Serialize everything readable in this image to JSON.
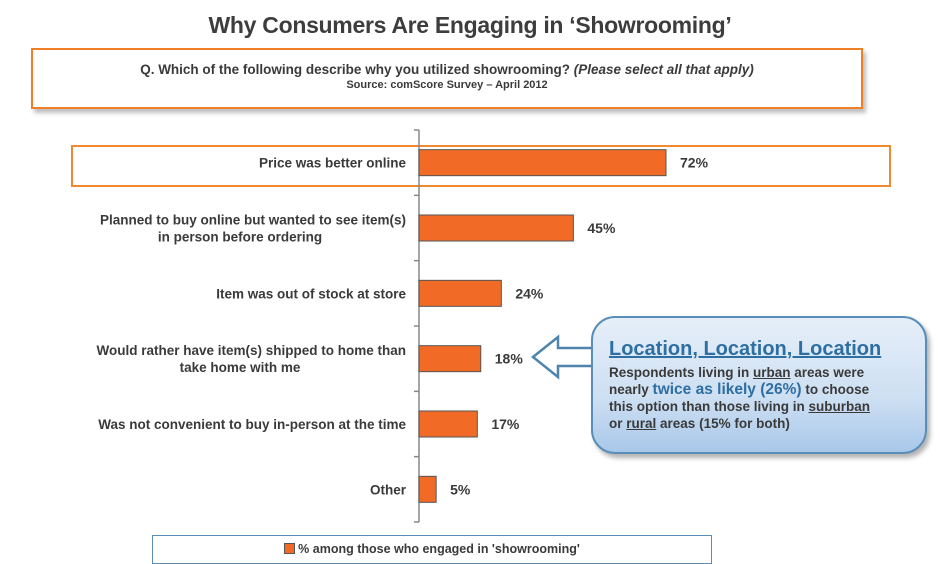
{
  "header": {
    "title": "Why Consumers Are Engaging in ‘Showrooming’"
  },
  "question_box": {
    "question": "Q. Which of the following describe why you utilized showrooming?",
    "question_note": "(Please select all that apply)",
    "source": "Source: comScore Survey – April 2012"
  },
  "callout": {
    "title": "Location, Location, Location",
    "line1_a": "Respondents living in ",
    "line1_urban": "urban",
    "line1_b": " areas were",
    "line2_a": "nearly ",
    "line2_em": "twice as likely (26%)",
    "line2_b": " to choose",
    "line3_a": "this option than those living in ",
    "line3_suburban": "suburban",
    "line4_a": "or ",
    "line4_rural": "rural",
    "line4_b": " areas (15% for both)",
    "arrow_icon": "left-arrow-icon"
  },
  "legend": {
    "label": "% among those who engaged in 'showrooming'"
  },
  "colors": {
    "bar": "#f26b26",
    "accent_orange": "#f07f27",
    "callout_blue": "#2e6fa3"
  },
  "chart_data": {
    "type": "bar",
    "orientation": "horizontal",
    "title": "Why Consumers Are Engaging in ‘Showrooming’",
    "xlabel": "",
    "ylabel": "",
    "xlim": [
      0,
      100
    ],
    "grid": false,
    "legend_position": "bottom",
    "highlighted_category": 0,
    "categories": [
      [
        "Price was better online"
      ],
      [
        "Planned to buy online but wanted to see item(s)",
        "in person before ordering"
      ],
      [
        "Item was out of stock at store"
      ],
      [
        "Would rather have item(s) shipped to home than",
        "take home with me"
      ],
      [
        "Was not convenient to buy in-person at the time"
      ],
      [
        "Other"
      ]
    ],
    "series": [
      {
        "name": "% among those who engaged in 'showrooming'",
        "values": [
          72,
          45,
          24,
          18,
          17,
          5
        ],
        "labels": [
          "72%",
          "45%",
          "24%",
          "18%",
          "17%",
          "5%"
        ]
      }
    ]
  }
}
